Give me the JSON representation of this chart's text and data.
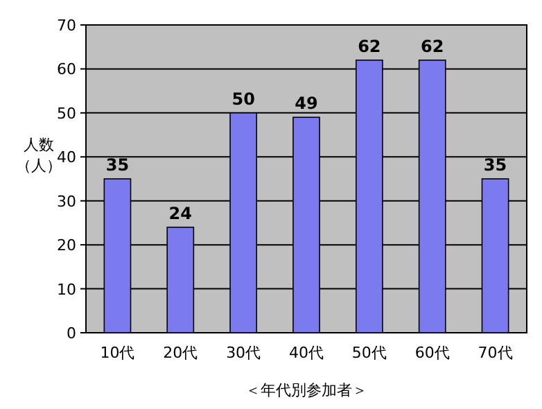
{
  "chart_data": {
    "type": "bar",
    "categories": [
      "10代",
      "20代",
      "30代",
      "40代",
      "50代",
      "60代",
      "70代"
    ],
    "values": [
      35,
      24,
      50,
      49,
      62,
      62,
      35
    ],
    "color": "#7b7bef",
    "ylim": [
      0,
      70
    ],
    "yticks": [
      0,
      10,
      20,
      30,
      40,
      50,
      60,
      70
    ],
    "grid": "y",
    "data_labels": true,
    "ylabel": "人数（人）",
    "xlabel": "＜年代別参加者＞"
  }
}
